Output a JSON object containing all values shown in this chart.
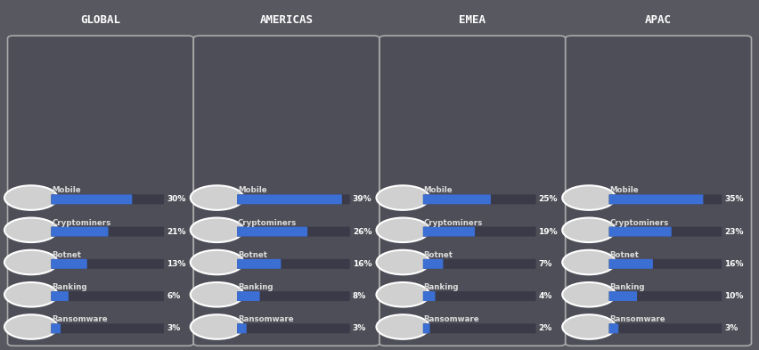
{
  "background_color": "#585860",
  "card_bg_color": "#4e4e58",
  "card_border_color": "#aaaaaa",
  "bar_color": "#3b6fd4",
  "bar_bg_color": "#3a3a48",
  "text_color": "#ffffff",
  "label_color": "#dddddd",
  "title_color": "#ffffff",
  "icon_circle_fill": "#d0d0d0",
  "icon_circle_border": "#ffffff",
  "regions": [
    "GLOBAL",
    "AMERICAS",
    "EMEA",
    "APAC"
  ],
  "categories": [
    "Mobile",
    "Cryptominers",
    "Botnet",
    "Banking",
    "Ransomware"
  ],
  "values": {
    "GLOBAL": [
      30,
      21,
      13,
      6,
      3
    ],
    "AMERICAS": [
      39,
      26,
      16,
      8,
      3
    ],
    "EMEA": [
      25,
      19,
      7,
      4,
      2
    ],
    "APAC": [
      35,
      23,
      16,
      10,
      3
    ]
  },
  "max_bar_value": 42,
  "figsize": [
    8.52,
    3.93
  ],
  "dpi": 100
}
